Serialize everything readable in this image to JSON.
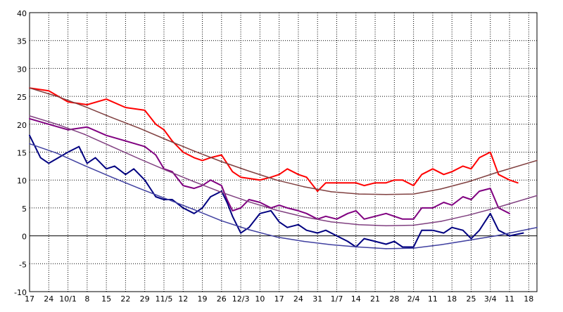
{
  "chart_data": {
    "type": "line",
    "title": "",
    "xlabel": "",
    "ylabel": "",
    "ylim": [
      -10,
      40
    ],
    "yticks": [
      -10,
      -5,
      0,
      5,
      10,
      15,
      20,
      25,
      30,
      35,
      40
    ],
    "xlim": [
      0,
      185
    ],
    "grid": true,
    "legend": "none",
    "x_tick_labels": [
      {
        "day": 0,
        "label": "17"
      },
      {
        "day": 7,
        "label": "24"
      },
      {
        "day": 14,
        "label": "10/1"
      },
      {
        "day": 21,
        "label": "8"
      },
      {
        "day": 28,
        "label": "15"
      },
      {
        "day": 35,
        "label": "22"
      },
      {
        "day": 42,
        "label": "29"
      },
      {
        "day": 49,
        "label": "11/5"
      },
      {
        "day": 56,
        "label": "12"
      },
      {
        "day": 63,
        "label": "19"
      },
      {
        "day": 70,
        "label": "26"
      },
      {
        "day": 77,
        "label": "12/3"
      },
      {
        "day": 84,
        "label": "10"
      },
      {
        "day": 91,
        "label": "17"
      },
      {
        "day": 98,
        "label": "24"
      },
      {
        "day": 105,
        "label": "31"
      },
      {
        "day": 112,
        "label": "1/7"
      },
      {
        "day": 119,
        "label": "14"
      },
      {
        "day": 126,
        "label": "21"
      },
      {
        "day": 133,
        "label": "28"
      },
      {
        "day": 140,
        "label": "2/4"
      },
      {
        "day": 147,
        "label": "11"
      },
      {
        "day": 154,
        "label": "18"
      },
      {
        "day": 161,
        "label": "25"
      },
      {
        "day": 168,
        "label": "3/4"
      },
      {
        "day": 175,
        "label": "11"
      },
      {
        "day": 182,
        "label": "18"
      }
    ],
    "colors": {
      "max": "#ff0000",
      "mean": "#800080",
      "min": "#000080",
      "min_raw": "#3050ff",
      "max_normal": "#804040",
      "mean_normal": "#804080",
      "min_normal": "#4040a0",
      "zero_line": "#000000",
      "grid": "#000000"
    },
    "series": [
      {
        "key": "max_smoothed",
        "color": "#ff0000",
        "width": 2,
        "x": [
          0,
          7,
          14,
          21,
          28,
          35,
          42,
          46,
          49,
          52,
          56,
          60,
          63,
          66,
          70,
          72,
          74,
          77,
          84,
          88,
          91,
          94,
          98,
          101,
          105,
          108,
          112,
          116,
          119,
          122,
          126,
          130,
          133,
          136,
          140,
          143,
          147,
          151,
          154,
          158,
          161,
          164,
          168,
          171,
          175,
          178
        ],
        "values": [
          26.5,
          26,
          24,
          23.5,
          24.5,
          23,
          22.5,
          20,
          19,
          17,
          15,
          14,
          13.5,
          14,
          14.5,
          13,
          11.5,
          10.5,
          10,
          10.5,
          11,
          12,
          11,
          10.5,
          8,
          9.5,
          9.5,
          9.5,
          9.5,
          9,
          9.5,
          9.5,
          10,
          10,
          9,
          11,
          12,
          11,
          11.5,
          12.5,
          12,
          14,
          15,
          11,
          10,
          9.5
        ]
      },
      {
        "key": "mean_smoothed",
        "color": "#800080",
        "width": 2,
        "x": [
          0,
          7,
          14,
          21,
          28,
          35,
          42,
          46,
          49,
          52,
          56,
          60,
          63,
          66,
          70,
          72,
          74,
          77,
          80,
          84,
          88,
          91,
          94,
          98,
          101,
          105,
          108,
          112,
          116,
          119,
          122,
          126,
          130,
          133,
          136,
          140,
          143,
          147,
          151,
          154,
          158,
          161,
          164,
          168,
          171,
          175
        ],
        "values": [
          21,
          20,
          19,
          19.5,
          18,
          17,
          16,
          14.5,
          12,
          11.5,
          9,
          8.5,
          9,
          10,
          9,
          6.5,
          4.5,
          5,
          6.5,
          6,
          5,
          5.5,
          5,
          4.5,
          4,
          3,
          3.5,
          3,
          4,
          4.5,
          3,
          3.5,
          4,
          3.5,
          3,
          3,
          5,
          5,
          6,
          5.5,
          7,
          6.5,
          8,
          8.5,
          5,
          4
        ]
      },
      {
        "key": "min_smoothed",
        "color": "#000080",
        "width": 2,
        "x": [
          0,
          4,
          7,
          14,
          18,
          21,
          24,
          28,
          31,
          35,
          38,
          42,
          46,
          49,
          52,
          56,
          60,
          63,
          66,
          70,
          72,
          74,
          77,
          80,
          84,
          88,
          91,
          94,
          98,
          101,
          105,
          108,
          112,
          116,
          119,
          122,
          126,
          130,
          133,
          136,
          140,
          143,
          147,
          151,
          154,
          158,
          161,
          164,
          168,
          171,
          175,
          180
        ],
        "values": [
          18,
          14,
          13,
          15,
          16,
          13,
          14,
          12,
          12.5,
          11,
          12,
          10,
          7,
          6.5,
          6.5,
          5,
          4,
          5,
          7,
          8,
          6,
          3.5,
          0.5,
          1.5,
          4,
          4.5,
          2.5,
          1.5,
          2,
          1,
          0.5,
          1,
          0,
          -1,
          -2,
          -0.5,
          -1,
          -1.5,
          -1,
          -2,
          -2,
          1,
          1,
          0.5,
          1.5,
          1,
          -0.5,
          1,
          4,
          1,
          0,
          0.5
        ]
      },
      {
        "key": "max_normal",
        "color": "#804040",
        "width": 1.5,
        "x": [
          0,
          10,
          20,
          30,
          40,
          50,
          60,
          70,
          80,
          90,
          100,
          110,
          120,
          130,
          140,
          150,
          160,
          170,
          185
        ],
        "values": [
          26.5,
          25,
          23.2,
          21.2,
          19.3,
          17.2,
          15.2,
          13.3,
          11.6,
          10,
          8.8,
          7.9,
          7.5,
          7.4,
          7.5,
          8.4,
          9.7,
          11.3,
          13.5
        ]
      },
      {
        "key": "mean_normal",
        "color": "#804080",
        "width": 1.5,
        "x": [
          0,
          10,
          20,
          30,
          40,
          50,
          60,
          70,
          80,
          90,
          100,
          110,
          120,
          130,
          140,
          150,
          160,
          170,
          185
        ],
        "values": [
          21.5,
          20,
          18.2,
          16,
          13.8,
          11.7,
          9.7,
          7.8,
          6.1,
          4.6,
          3.4,
          2.5,
          2,
          1.8,
          1.9,
          2.6,
          3.7,
          5,
          7.2
        ]
      },
      {
        "key": "min_normal",
        "color": "#4040a0",
        "width": 1.5,
        "x": [
          0,
          10,
          20,
          30,
          40,
          50,
          60,
          70,
          80,
          90,
          100,
          110,
          120,
          130,
          140,
          150,
          160,
          170,
          185
        ],
        "values": [
          16.5,
          14.8,
          12.6,
          10.5,
          8.5,
          6.6,
          4.7,
          2.7,
          1.1,
          -0.2,
          -1,
          -1.6,
          -2,
          -2.3,
          -2.2,
          -1.6,
          -0.8,
          0,
          1.5
        ]
      }
    ]
  }
}
